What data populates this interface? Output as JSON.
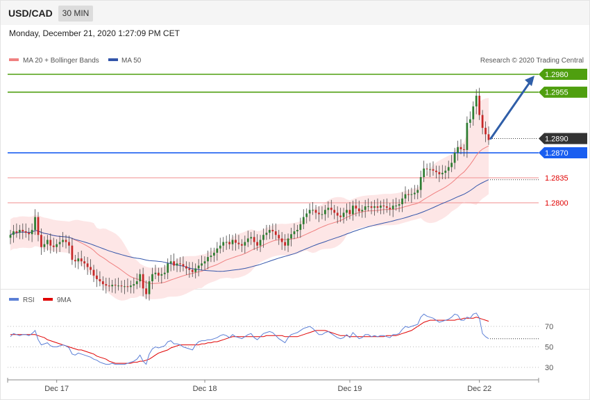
{
  "header": {
    "symbol": "USD/CAD",
    "timeframe": "30 MIN",
    "datetime": "Monday, December 21, 2020 1:27:09 PM CET"
  },
  "colors": {
    "bull": "#2e7d32",
    "bear": "#c62828",
    "bollinger_fill": "#fde2e2",
    "ma20": "#f08080",
    "ma50": "#3355aa",
    "target": "#4f9f0f",
    "pivot": "#1a5ef0",
    "support": "#f4a3a3",
    "current": "#333333",
    "arrow": "#2f5ea8",
    "rsi": "#5b7fd6",
    "rsi_ma": "#e00000"
  },
  "chart_data": [
    {
      "type": "candlestick",
      "legend": {
        "placement": "top-left",
        "items": [
          {
            "label": "MA 20 + Bollinger Bands",
            "color": "#f08080"
          },
          {
            "label": "MA 50",
            "color": "#3355aa"
          }
        ]
      },
      "credit": "Research © 2020 Trading Central",
      "ylim": [
        1.2645,
        1.301
      ],
      "levels": [
        {
          "label": "1.2980",
          "value": 1.298,
          "kind": "target"
        },
        {
          "label": "1.2955",
          "value": 1.2955,
          "kind": "target"
        },
        {
          "label": "1.2890",
          "value": 1.289,
          "kind": "current"
        },
        {
          "label": "1.2870",
          "value": 1.287,
          "kind": "pivot"
        },
        {
          "label": "1.2835",
          "value": 1.2835,
          "kind": "support"
        },
        {
          "label": "1.2800",
          "value": 1.28,
          "kind": "support"
        }
      ],
      "x_ticks": [
        {
          "label": "Dec 17",
          "index": 15
        },
        {
          "label": "Dec 18",
          "index": 63
        },
        {
          "label": "Dec 19",
          "index": 110
        },
        {
          "label": "Dec 22",
          "index": 152
        }
      ],
      "forecast_arrow": {
        "from": 1.289,
        "to": 1.298
      },
      "closes": [
        1.2755,
        1.276,
        1.2758,
        1.2762,
        1.276,
        1.2758,
        1.2756,
        1.2762,
        1.278,
        1.2755,
        1.2738,
        1.2742,
        1.2748,
        1.274,
        1.2738,
        1.2742,
        1.2745,
        1.2748,
        1.2745,
        1.274,
        1.272,
        1.2718,
        1.2722,
        1.2718,
        1.2715,
        1.271,
        1.2706,
        1.2698,
        1.2693,
        1.269,
        1.2686,
        1.2684,
        1.2683,
        1.2685,
        1.2684,
        1.2684,
        1.2683,
        1.2683,
        1.2682,
        1.2684,
        1.2686,
        1.269,
        1.27,
        1.268,
        1.2672,
        1.269,
        1.27,
        1.2702,
        1.2698,
        1.27,
        1.2702,
        1.2715,
        1.2718,
        1.2712,
        1.2715,
        1.2714,
        1.2711,
        1.2708,
        1.2706,
        1.2703,
        1.2708,
        1.2712,
        1.2715,
        1.2718,
        1.2724,
        1.2726,
        1.273,
        1.2736,
        1.274,
        1.2745,
        1.2745,
        1.2742,
        1.2748,
        1.2744,
        1.2742,
        1.274,
        1.2745,
        1.275,
        1.2752,
        1.2745,
        1.274,
        1.2748,
        1.2755,
        1.2758,
        1.2762,
        1.276,
        1.2755,
        1.275,
        1.2745,
        1.274,
        1.275,
        1.2756,
        1.276,
        1.2762,
        1.277,
        1.278,
        1.2785,
        1.279,
        1.279,
        1.2786,
        1.2784,
        1.2784,
        1.279,
        1.2793,
        1.279,
        1.2786,
        1.2782,
        1.278,
        1.2786,
        1.279,
        1.2784,
        1.2796,
        1.2792,
        1.2788,
        1.279,
        1.2795,
        1.2795,
        1.2793,
        1.2795,
        1.2793,
        1.2796,
        1.2795,
        1.2793,
        1.2791,
        1.2796,
        1.2796,
        1.2798,
        1.2806,
        1.2812,
        1.2811,
        1.2812,
        1.2814,
        1.2818,
        1.2836,
        1.2848,
        1.2847,
        1.2847,
        1.2845,
        1.2843,
        1.284,
        1.2842,
        1.2845,
        1.285,
        1.2856,
        1.287,
        1.2878,
        1.2875,
        1.2874,
        1.2912,
        1.2917,
        1.2935,
        1.295,
        1.2923,
        1.2905,
        1.2896,
        1.2888
      ]
    },
    {
      "type": "line",
      "legend": {
        "placement": "top-left",
        "items": [
          {
            "label": "RSI",
            "color": "#5b7fd6"
          },
          {
            "label": "9MA",
            "color": "#e00000"
          }
        ]
      },
      "ylim": [
        22,
        88
      ],
      "y_ticks": [
        "70",
        "50",
        "30"
      ],
      "y_tick_values": [
        70,
        50,
        30
      ],
      "last_rsi": 58,
      "series": [
        {
          "name": "RSI",
          "values": [
            60,
            63,
            62,
            61,
            62,
            62,
            61,
            63,
            66,
            57,
            52,
            53,
            54,
            51,
            50,
            50,
            51,
            52,
            51,
            49,
            43,
            42,
            44,
            43,
            42,
            41,
            40,
            38,
            37,
            35,
            34,
            33,
            33,
            34,
            33,
            33,
            33,
            33,
            34,
            35,
            36,
            38,
            42,
            36,
            33,
            43,
            48,
            50,
            49,
            50,
            51,
            55,
            56,
            53,
            53,
            52,
            50,
            49,
            48,
            47,
            52,
            55,
            56,
            56,
            57,
            57,
            58,
            59,
            61,
            62,
            61,
            59,
            62,
            60,
            59,
            58,
            60,
            62,
            63,
            59,
            57,
            60,
            63,
            64,
            65,
            64,
            61,
            58,
            56,
            54,
            59,
            62,
            63,
            64,
            66,
            68,
            69,
            70,
            68,
            65,
            62,
            62,
            64,
            65,
            63,
            61,
            59,
            58,
            59,
            62,
            59,
            64,
            61,
            58,
            59,
            62,
            62,
            60,
            61,
            60,
            61,
            61,
            60,
            59,
            62,
            62,
            63,
            67,
            70,
            69,
            70,
            71,
            72,
            79,
            82,
            80,
            79,
            78,
            76,
            74,
            75,
            76,
            77,
            79,
            82,
            81,
            76,
            76,
            79,
            78,
            82,
            83,
            78,
            63,
            60,
            58
          ]
        },
        {
          "name": "9MA",
          "values": [
            62,
            62,
            62,
            62,
            62,
            62,
            62,
            62,
            62,
            61,
            60,
            59,
            57,
            56,
            55,
            54,
            53,
            52,
            51,
            50,
            49,
            48,
            47,
            47,
            46,
            45,
            44,
            43,
            41,
            40,
            39,
            38,
            36,
            35,
            34,
            34,
            34,
            34,
            34,
            34,
            35,
            35,
            36,
            36,
            37,
            38,
            40,
            42,
            44,
            45,
            46,
            47,
            49,
            50,
            51,
            52,
            52,
            52,
            52,
            52,
            52,
            52,
            53,
            53,
            54,
            54,
            55,
            55,
            56,
            57,
            58,
            59,
            60,
            60,
            60,
            60,
            60,
            60,
            60,
            60,
            60,
            60,
            60,
            61,
            61,
            61,
            61,
            61,
            61,
            60,
            60,
            60,
            60,
            60,
            61,
            62,
            63,
            64,
            65,
            66,
            66,
            66,
            66,
            65,
            64,
            63,
            62,
            61,
            61,
            61,
            60,
            60,
            60,
            60,
            60,
            60,
            60,
            60,
            60,
            60,
            60,
            60,
            61,
            61,
            61,
            61,
            62,
            63,
            64,
            65,
            66,
            68,
            70,
            72,
            74,
            75,
            76,
            76,
            76,
            76,
            76,
            76,
            76,
            76,
            76,
            77,
            77,
            78,
            78,
            78,
            78,
            79,
            78,
            77,
            76,
            75
          ]
        }
      ]
    }
  ]
}
